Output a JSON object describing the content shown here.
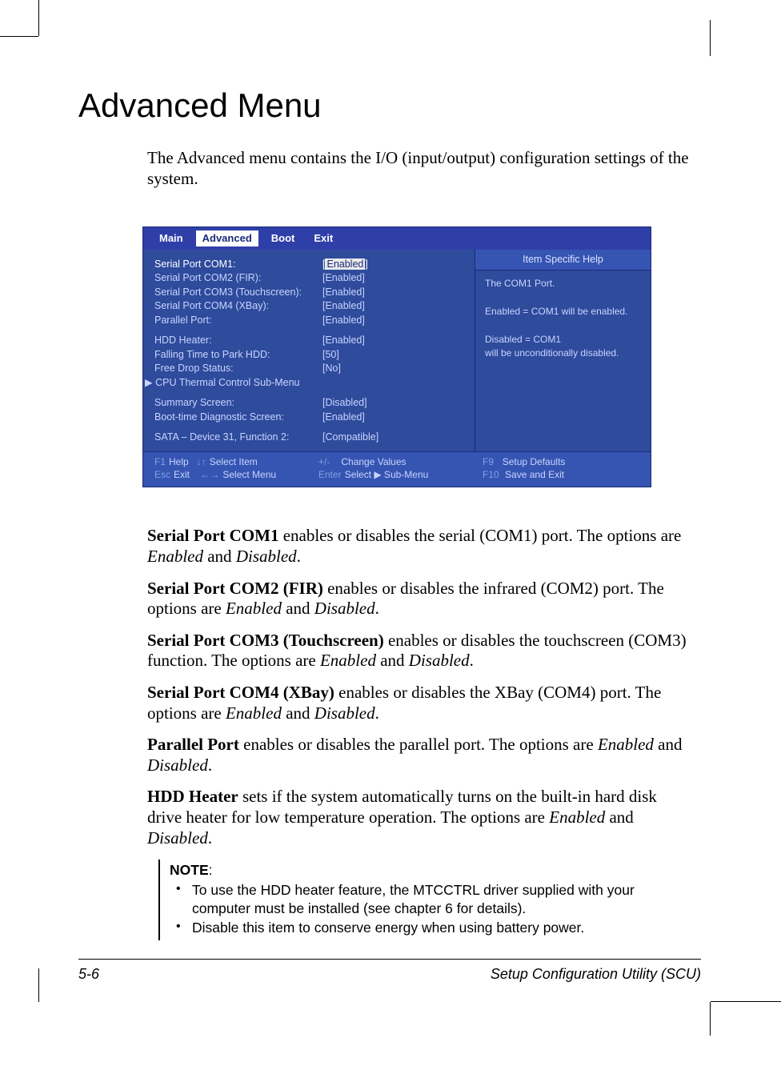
{
  "page": {
    "title": "Advanced Menu",
    "intro": "The Advanced menu contains the I/O (input/output) configuration settings of the system.",
    "footer_left": "5-6",
    "footer_right": "Setup Configuration Utility (SCU)"
  },
  "bios": {
    "colors": {
      "frame_bg": "#2e4b9c",
      "tab_bar": "#2f3fa8",
      "footer_bg": "#3655b2",
      "text": "#c9d4ff",
      "white": "#ffffff",
      "highlight_bg": "#e9e9e9",
      "key": "#7fa0e8"
    },
    "tabs": [
      "Main",
      "Advanced",
      "Boot",
      "Exit"
    ],
    "active_tab": "Advanced",
    "rows": [
      {
        "label": "Serial Port COM1:",
        "value": "Enabled",
        "selected": true,
        "highlight": true
      },
      {
        "label": "Serial Port COM2 (FIR):",
        "value": "[Enabled]"
      },
      {
        "label": "Serial Port COM3 (Touchscreen):",
        "value": "[Enabled]"
      },
      {
        "label": "Serial Port COM4 (XBay):",
        "value": "[Enabled]"
      },
      {
        "label": "Parallel Port:",
        "value": "[Enabled]"
      },
      {
        "gap": true
      },
      {
        "label": "HDD Heater:",
        "value": "[Enabled]"
      },
      {
        "label": "Falling Time to Park HDD:",
        "value": "[50]"
      },
      {
        "label": "Free Drop Status:",
        "value": "[No]"
      },
      {
        "label": "CPU Thermal Control Sub-Menu",
        "value": "",
        "submenu": true
      },
      {
        "gap": true
      },
      {
        "label": "Summary Screen:",
        "value": "[Disabled]"
      },
      {
        "label": "Boot-time Diagnostic Screen:",
        "value": "[Enabled]"
      },
      {
        "gap": true
      },
      {
        "label": "SATA – Device 31, Function 2:",
        "value": "[Compatible]"
      }
    ],
    "help": {
      "title": "Item Specific Help",
      "lines": [
        "The COM1 Port.",
        "",
        "Enabled = COM1 will be enabled.",
        "",
        "Disabled = COM1",
        "will be unconditionally disabled."
      ]
    },
    "footer": {
      "f1": "Help",
      "esc": "Exit",
      "updn": "Select Item",
      "lr": "Select Menu",
      "pm": "Change Values",
      "enter": "Select ▶ Sub-Menu",
      "f9": "Setup Defaults",
      "f10": "Save and Exit"
    }
  },
  "desc": {
    "p1_b": "Serial Port COM1",
    "p1": "  enables or disables the serial (COM1) port. The options are ",
    "p1_i1": "Enabled",
    "p1_mid": " and ",
    "p1_i2": "Disabled",
    "p1_end": ".",
    "p2_b": "Serial Port COM2 (FIR)",
    "p2": "  enables or disables the infrared (COM2) port. The options are ",
    "p2_i1": "Enabled",
    "p2_mid": " and ",
    "p2_i2": "Disabled",
    "p2_end": ".",
    "p3_b": "Serial Port COM3 (Touchscreen)",
    "p3": "  enables or disables the touchscreen (COM3) function. The options are ",
    "p3_i1": "Enabled",
    "p3_mid": " and ",
    "p3_i2": "Disabled",
    "p3_end": ".",
    "p4_b": "Serial Port COM4 (XBay)",
    "p4": "  enables or disables the XBay (COM4) port. The options are ",
    "p4_i1": "Enabled",
    "p4_mid": " and ",
    "p4_i2": "Disabled",
    "p4_end": ".",
    "p5_b": "Parallel Port",
    "p5": "  enables or disables the parallel port. The options are ",
    "p5_i1": "Enabled",
    "p5_mid": " and ",
    "p5_i2": "Disabled",
    "p5_end": ".",
    "p6_b": "HDD Heater",
    "p6": "  sets if the system automatically turns on the built-in hard disk drive heater for low temperature operation. The options are ",
    "p6_i1": "Enabled",
    "p6_mid": " and ",
    "p6_i2": "Disabled",
    "p6_end": "."
  },
  "note": {
    "head": "NOTE",
    "colon": ":",
    "items": [
      "To use the HDD heater feature, the MTCCTRL driver supplied with your computer must be installed (see chapter 6 for details).",
      "Disable this item to conserve energy when using battery power."
    ]
  }
}
